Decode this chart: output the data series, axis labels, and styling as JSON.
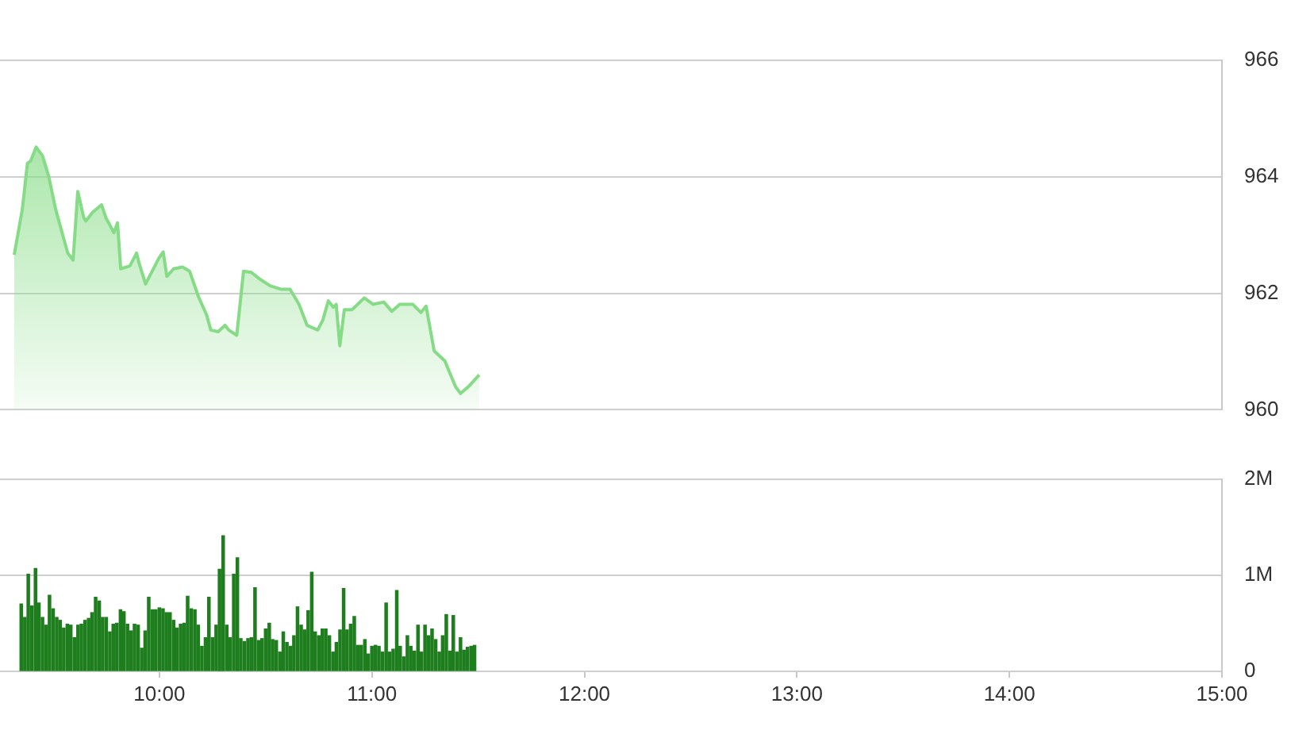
{
  "chart_data": [
    {
      "type": "area",
      "color": "#86dc86",
      "marker": "none",
      "grid": "y",
      "tick_labels": "y",
      "xlim": [
        9.25,
        15
      ],
      "ylim": [
        960,
        966
      ],
      "yticks": [
        960,
        962,
        964,
        966
      ],
      "x": [
        9.317,
        9.355,
        9.379,
        9.394,
        9.42,
        9.45,
        9.479,
        9.512,
        9.549,
        9.569,
        9.594,
        9.616,
        9.644,
        9.654,
        9.686,
        9.728,
        9.748,
        9.773,
        9.786,
        9.803,
        9.818,
        9.861,
        9.893,
        9.905,
        9.935,
        9.997,
        10.018,
        10.035,
        10.067,
        10.109,
        10.142,
        10.184,
        10.222,
        10.242,
        10.276,
        10.309,
        10.326,
        10.364,
        10.396,
        10.433,
        10.47,
        10.521,
        10.571,
        10.615,
        10.657,
        10.695,
        10.745,
        10.769,
        10.795,
        10.819,
        10.832,
        10.849,
        10.87,
        10.907,
        10.964,
        11.006,
        11.056,
        11.094,
        11.131,
        11.193,
        11.231,
        11.255,
        11.293,
        11.343,
        11.393,
        11.417,
        11.455,
        11.505
      ],
      "values": [
        962.66,
        963.44,
        964.23,
        964.27,
        964.51,
        964.36,
        964.01,
        963.44,
        962.95,
        962.69,
        962.57,
        963.75,
        963.3,
        963.24,
        963.39,
        963.52,
        963.3,
        963.13,
        963.04,
        963.21,
        962.42,
        962.47,
        962.69,
        962.51,
        962.16,
        962.6,
        962.71,
        962.29,
        962.42,
        962.45,
        962.38,
        961.94,
        961.63,
        961.37,
        961.34,
        961.45,
        961.37,
        961.28,
        962.38,
        962.36,
        962.25,
        962.13,
        962.07,
        962.07,
        961.81,
        961.45,
        961.37,
        961.54,
        961.87,
        961.76,
        961.81,
        961.1,
        961.72,
        961.72,
        961.92,
        961.81,
        961.85,
        961.69,
        961.81,
        961.81,
        961.67,
        961.78,
        961.01,
        960.84,
        960.4,
        960.28,
        960.4,
        960.6
      ]
    },
    {
      "type": "bar",
      "color": "#1e7e1e",
      "grid": "y",
      "xlim": [
        9.25,
        15
      ],
      "xticks": [
        {
          "value": 10,
          "label": "10:00"
        },
        {
          "value": 11,
          "label": "11:00"
        },
        {
          "value": 12,
          "label": "12:00"
        },
        {
          "value": 13,
          "label": "13:00"
        },
        {
          "value": 14,
          "label": "14:00"
        },
        {
          "value": 15,
          "label": "15:00"
        }
      ],
      "ylim": [
        0,
        2000000
      ],
      "yticks": [
        0,
        {
          "value": 1000000,
          "label": "1M"
        },
        {
          "value": 2000000,
          "label": "2M"
        }
      ],
      "x": [
        9.35,
        9.367,
        9.383,
        9.4,
        9.417,
        9.433,
        9.45,
        9.467,
        9.483,
        9.5,
        9.517,
        9.533,
        9.55,
        9.567,
        9.583,
        9.6,
        9.617,
        9.633,
        9.65,
        9.667,
        9.683,
        9.7,
        9.717,
        9.733,
        9.75,
        9.767,
        9.783,
        9.8,
        9.817,
        9.833,
        9.85,
        9.867,
        9.883,
        9.9,
        9.917,
        9.933,
        9.95,
        9.967,
        9.983,
        10,
        10.017,
        10.033,
        10.05,
        10.067,
        10.083,
        10.1,
        10.117,
        10.133,
        10.15,
        10.167,
        10.183,
        10.2,
        10.217,
        10.233,
        10.25,
        10.267,
        10.283,
        10.3,
        10.317,
        10.333,
        10.35,
        10.367,
        10.383,
        10.4,
        10.417,
        10.433,
        10.45,
        10.467,
        10.483,
        10.5,
        10.517,
        10.533,
        10.55,
        10.567,
        10.583,
        10.6,
        10.617,
        10.633,
        10.65,
        10.667,
        10.683,
        10.7,
        10.717,
        10.733,
        10.75,
        10.767,
        10.783,
        10.8,
        10.817,
        10.833,
        10.85,
        10.867,
        10.883,
        10.9,
        10.917,
        10.933,
        10.95,
        10.967,
        10.983,
        11,
        11.017,
        11.033,
        11.05,
        11.067,
        11.083,
        11.1,
        11.117,
        11.133,
        11.15,
        11.167,
        11.183,
        11.2,
        11.217,
        11.233,
        11.25,
        11.267,
        11.283,
        11.3,
        11.317,
        11.333,
        11.35,
        11.367,
        11.383,
        11.4,
        11.417,
        11.433,
        11.45,
        11.467,
        11.483
      ],
      "values": [
        700000,
        560000,
        1010000,
        680000,
        1070000,
        710000,
        560000,
        480000,
        790000,
        650000,
        560000,
        530000,
        450000,
        490000,
        480000,
        350000,
        480000,
        490000,
        530000,
        550000,
        610000,
        770000,
        730000,
        560000,
        560000,
        410000,
        490000,
        500000,
        640000,
        620000,
        490000,
        420000,
        490000,
        480000,
        240000,
        420000,
        770000,
        640000,
        640000,
        660000,
        650000,
        610000,
        610000,
        530000,
        450000,
        490000,
        500000,
        780000,
        650000,
        640000,
        480000,
        260000,
        350000,
        770000,
        350000,
        480000,
        1060000,
        1410000,
        480000,
        350000,
        1010000,
        1180000,
        340000,
        310000,
        340000,
        350000,
        870000,
        320000,
        340000,
        440000,
        500000,
        330000,
        320000,
        200000,
        410000,
        300000,
        260000,
        370000,
        670000,
        480000,
        430000,
        630000,
        1030000,
        410000,
        370000,
        440000,
        440000,
        370000,
        200000,
        300000,
        430000,
        860000,
        430000,
        490000,
        570000,
        270000,
        270000,
        330000,
        180000,
        260000,
        270000,
        260000,
        200000,
        710000,
        200000,
        230000,
        840000,
        260000,
        150000,
        370000,
        260000,
        210000,
        480000,
        200000,
        480000,
        370000,
        440000,
        330000,
        200000,
        370000,
        590000,
        210000,
        580000,
        200000,
        350000,
        220000,
        250000,
        260000,
        270000
      ]
    }
  ]
}
